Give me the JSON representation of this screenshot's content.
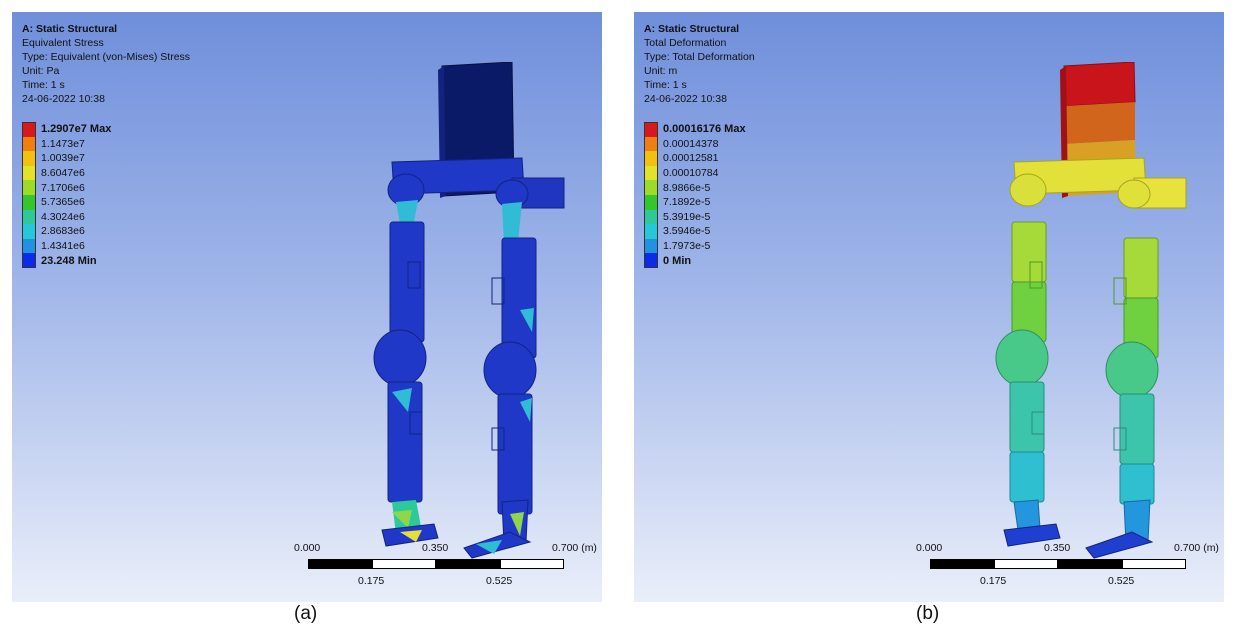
{
  "panels": [
    {
      "header": {
        "title": "A: Static Structural",
        "result": "Equivalent Stress",
        "type": "Type: Equivalent (von-Mises) Stress",
        "unit": "Unit: Pa",
        "time": "Time: 1 s",
        "date": "24-06-2022 10:38"
      },
      "legend": [
        {
          "label": "1.2907e7 Max",
          "color": "#d7191c"
        },
        {
          "label": "1.1473e7",
          "color": "#f07f12"
        },
        {
          "label": "1.0039e7",
          "color": "#f2c011"
        },
        {
          "label": "8.6047e6",
          "color": "#e0e32a"
        },
        {
          "label": "7.1706e6",
          "color": "#9bdc2a"
        },
        {
          "label": "5.7365e6",
          "color": "#33c62d"
        },
        {
          "label": "4.3024e6",
          "color": "#2dc99a"
        },
        {
          "label": "2.8683e6",
          "color": "#26c7d9"
        },
        {
          "label": "1.4341e6",
          "color": "#2192e2"
        },
        {
          "label": "23.248 Min",
          "color": "#0c2be8"
        }
      ],
      "model_colors": {
        "body": "#1f38c8",
        "body_dark": "#13227f",
        "hotspot": "#30bcd4",
        "accent": "#8fd64a",
        "top_panel": "#0b1a66"
      },
      "scale": {
        "l0": "0.000",
        "l1": "0.350",
        "l2": "0.700 (m)",
        "l3": "0.175",
        "l4": "0.525"
      },
      "caption": "(a)"
    },
    {
      "header": {
        "title": "A: Static Structural",
        "result": "Total Deformation",
        "type": "Type: Total Deformation",
        "unit": "Unit: m",
        "time": "Time: 1 s",
        "date": "24-06-2022 10:38"
      },
      "legend": [
        {
          "label": "0.00016176 Max",
          "color": "#d7191c"
        },
        {
          "label": "0.00014378",
          "color": "#f07f12"
        },
        {
          "label": "0.00012581",
          "color": "#f2c011"
        },
        {
          "label": "0.00010784",
          "color": "#e0e32a"
        },
        {
          "label": "8.9866e-5",
          "color": "#9bdc2a"
        },
        {
          "label": "7.1892e-5",
          "color": "#33c62d"
        },
        {
          "label": "5.3919e-5",
          "color": "#2dc99a"
        },
        {
          "label": "3.5946e-5",
          "color": "#26c7d9"
        },
        {
          "label": "1.7973e-5",
          "color": "#2192e2"
        },
        {
          "label": "0 Min",
          "color": "#0c2be8"
        }
      ],
      "model_colors": {
        "top": "#c8141a",
        "upper": "#d88a20",
        "hip": "#e3e03a",
        "thigh": "#8fd63a",
        "knee": "#40c98a",
        "shin": "#2ec3c8",
        "foot": "#1e3fd0"
      },
      "scale": {
        "l0": "0.000",
        "l1": "0.350",
        "l2": "0.700 (m)",
        "l3": "0.175",
        "l4": "0.525"
      },
      "caption": "(b)"
    }
  ]
}
